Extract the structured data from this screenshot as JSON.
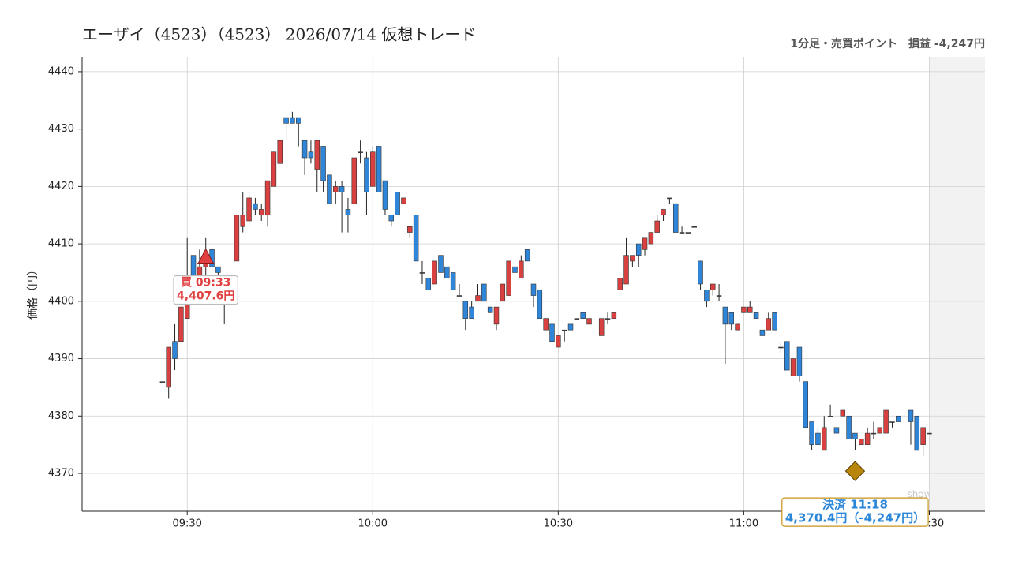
{
  "chart_data": {
    "type": "candlestick",
    "title": "エーザイ（4523）（4523） 2026/07/14 仮想トレード",
    "subtitle": "1分足・売買ポイント　損益 -4,247円",
    "y_label": "価格（円）",
    "watermark": "show-zeet.com",
    "up_color": "#d94040",
    "down_color": "#2f86d8",
    "grid": true,
    "xlim": [
      "09:13",
      "11:39"
    ],
    "xticks": [
      "09:30",
      "10:00",
      "10:30",
      "11:00",
      "11:30"
    ],
    "ylim": [
      4363.4,
      4442.6
    ],
    "yticks": [
      4370,
      4380,
      4390,
      4400,
      4410,
      4420,
      4430,
      4440
    ],
    "x": [
      "09:26",
      "09:27",
      "09:28",
      "09:29",
      "09:30",
      "09:31",
      "09:32",
      "09:33",
      "09:34",
      "09:35",
      "09:36",
      "09:37",
      "09:38",
      "09:39",
      "09:40",
      "09:41",
      "09:42",
      "09:43",
      "09:44",
      "09:45",
      "09:46",
      "09:47",
      "09:48",
      "09:49",
      "09:50",
      "09:51",
      "09:52",
      "09:53",
      "09:54",
      "09:55",
      "09:56",
      "09:57",
      "09:58",
      "09:59",
      "10:00",
      "10:01",
      "10:02",
      "10:03",
      "10:04",
      "10:05",
      "10:06",
      "10:07",
      "10:08",
      "10:09",
      "10:10",
      "10:11",
      "10:12",
      "10:13",
      "10:14",
      "10:15",
      "10:16",
      "10:17",
      "10:18",
      "10:19",
      "10:20",
      "10:21",
      "10:22",
      "10:23",
      "10:24",
      "10:25",
      "10:26",
      "10:27",
      "10:28",
      "10:29",
      "10:30",
      "10:31",
      "10:32",
      "10:33",
      "10:34",
      "10:35",
      "10:37",
      "10:38",
      "10:39",
      "10:40",
      "10:41",
      "10:42",
      "10:43",
      "10:44",
      "10:45",
      "10:46",
      "10:47",
      "10:48",
      "10:49",
      "10:50",
      "10:51",
      "10:52",
      "10:53",
      "10:54",
      "10:55",
      "10:56",
      "10:57",
      "10:58",
      "10:59",
      "11:00",
      "11:01",
      "11:02",
      "11:03",
      "11:04",
      "11:05",
      "11:06",
      "11:07",
      "11:08",
      "11:09",
      "11:10",
      "11:11",
      "11:12",
      "11:13",
      "11:14",
      "11:15",
      "11:16",
      "11:17",
      "11:18",
      "11:19",
      "11:20",
      "11:21",
      "11:22",
      "11:23",
      "11:24",
      "11:25",
      "11:27",
      "11:28",
      "11:29",
      "11:30"
    ],
    "open": [
      4386,
      4385,
      4393,
      4393,
      4397,
      4408,
      4402,
      4406,
      4409,
      4406,
      4401,
      4402,
      4407,
      4413,
      4414,
      4417,
      4415,
      4415,
      4420,
      4424,
      4432,
      4432,
      4432,
      4428,
      4426,
      4423,
      4427,
      4422,
      4419,
      4420,
      4416,
      4417,
      4426,
      4425,
      4420,
      4427,
      4421,
      4415,
      4419,
      4417,
      4412,
      4415,
      4405,
      4404,
      4403,
      4408,
      4406,
      4405,
      4401,
      4400,
      4399,
      4400,
      4403,
      4399,
      4396,
      4400,
      4401,
      4406,
      4404,
      4409,
      4403,
      4402,
      4395,
      4396,
      4392,
      4395,
      4396,
      4397,
      4398,
      4396,
      4394,
      4397,
      4397,
      4402,
      4403,
      4407,
      4410,
      4409,
      4410,
      4412,
      4415,
      4418,
      4417,
      4412,
      4412,
      4413,
      4407,
      4402,
      4402,
      4401,
      4399,
      4398,
      4395,
      4398,
      4398,
      4398,
      4395,
      4395,
      4398,
      4392,
      4393,
      4387,
      4392,
      4386,
      4379,
      4377,
      4374,
      4380,
      4378,
      4380,
      4380,
      4377,
      4375,
      4375,
      4377,
      4377,
      4377,
      4379,
      4380,
      4381,
      4380,
      4375,
      4377
    ],
    "high": [
      4386,
      4392,
      4396,
      4399,
      4411,
      4408,
      4409,
      4411,
      4409,
      4406,
      4401,
      4403,
      4415,
      4419,
      4419,
      4418,
      4417,
      4421,
      4426,
      4428,
      4432,
      4433,
      4432,
      4428,
      4428,
      4428,
      4427,
      4422,
      4421,
      4421,
      4418,
      4425,
      4428,
      4426,
      4427,
      4427,
      4421,
      4415,
      4419,
      4418,
      4413,
      4415,
      4407,
      4404,
      4407,
      4408,
      4406,
      4405,
      4403,
      4400,
      4400,
      4403,
      4403,
      4399,
      4399,
      4403,
      4407,
      4408,
      4408,
      4409,
      4403,
      4402,
      4397,
      4396,
      4394,
      4395,
      4396,
      4397,
      4398,
      4397,
      4397,
      4398,
      4398,
      4404,
      4411,
      4408,
      4410,
      4411,
      4412,
      4415,
      4416,
      4418,
      4417,
      4413,
      4412,
      4413,
      4407,
      4402,
      4403,
      4403,
      4399,
      4398,
      4396,
      4399,
      4400,
      4398,
      4395,
      4398,
      4398,
      4393,
      4393,
      4390,
      4392,
      4386,
      4379,
      4378,
      4380,
      4382,
      4378,
      4381,
      4380,
      4377,
      4376,
      4378,
      4379,
      4378,
      4381,
      4379,
      4380,
      4381,
      4380,
      4378,
      4377
    ],
    "low": [
      4386,
      4383,
      4388,
      4393,
      4397,
      4401,
      4401,
      4404,
      4405,
      4404,
      4396,
      4400,
      4407,
      4412,
      4413,
      4415,
      4414,
      4413,
      4420,
      4424,
      4428,
      4431,
      4427,
      4422,
      4424,
      4419,
      4419,
      4417,
      4417,
      4412,
      4412,
      4417,
      4424,
      4415,
      4420,
      4419,
      4415,
      4413,
      4415,
      4417,
      4411,
      4407,
      4403,
      4402,
      4403,
      4405,
      4404,
      4402,
      4401,
      4395,
      4397,
      4400,
      4400,
      4398,
      4395,
      4400,
      4401,
      4405,
      4404,
      4407,
      4399,
      4397,
      4395,
      4393,
      4392,
      4393,
      4395,
      4397,
      4397,
      4396,
      4394,
      4396,
      4397,
      4402,
      4403,
      4406,
      4406,
      4408,
      4410,
      4412,
      4414,
      4417,
      4412,
      4412,
      4412,
      4413,
      4402,
      4399,
      4401,
      4400,
      4389,
      4395,
      4395,
      4398,
      4398,
      4397,
      4394,
      4395,
      4395,
      4391,
      4388,
      4387,
      4386,
      4378,
      4374,
      4375,
      4374,
      4380,
      4377,
      4380,
      4376,
      4374,
      4375,
      4375,
      4376,
      4377,
      4377,
      4378,
      4379,
      4375,
      4374,
      4373,
      4377
    ],
    "close": [
      4386,
      4392,
      4390,
      4399,
      4404,
      4402,
      4406,
      4407,
      4406,
      4405,
      4401,
      4402,
      4415,
      4415,
      4418,
      4416,
      4416,
      4421,
      4426,
      4428,
      4431,
      4431,
      4431,
      4425,
      4425,
      4428,
      4421,
      4417,
      4420,
      4419,
      4415,
      4425,
      4426,
      4419,
      4426,
      4419,
      4416,
      4414,
      4415,
      4418,
      4413,
      4407,
      4405,
      4402,
      4407,
      4405,
      4404,
      4402,
      4401,
      4397,
      4397,
      4401,
      4400,
      4398,
      4399,
      4403,
      4407,
      4405,
      4407,
      4407,
      4401,
      4397,
      4397,
      4393,
      4394,
      4395,
      4395,
      4397,
      4397,
      4397,
      4397,
      4397,
      4398,
      4404,
      4408,
      4408,
      4408,
      4411,
      4412,
      4414,
      4416,
      4418,
      4412,
      4412,
      4412,
      4413,
      4403,
      4400,
      4403,
      4401,
      4396,
      4396,
      4396,
      4399,
      4399,
      4397,
      4394,
      4397,
      4395,
      4392,
      4388,
      4390,
      4387,
      4378,
      4375,
      4375,
      4378,
      4380,
      4377,
      4381,
      4376,
      4376,
      4376,
      4377,
      4377,
      4378,
      4381,
      4379,
      4379,
      4379,
      4374,
      4378,
      4377
    ],
    "annotations": [
      {
        "kind": "buy",
        "x": "09:33",
        "value": 4407.6,
        "text": "買 09:33",
        "value_label": "4,407.6円",
        "color": "#e04040"
      },
      {
        "kind": "sell",
        "x": "11:18",
        "value": 4370.4,
        "text": "決済 11:18",
        "value_label": "4,370.4円（-4,247円）",
        "color": "#b8860b"
      }
    ]
  }
}
